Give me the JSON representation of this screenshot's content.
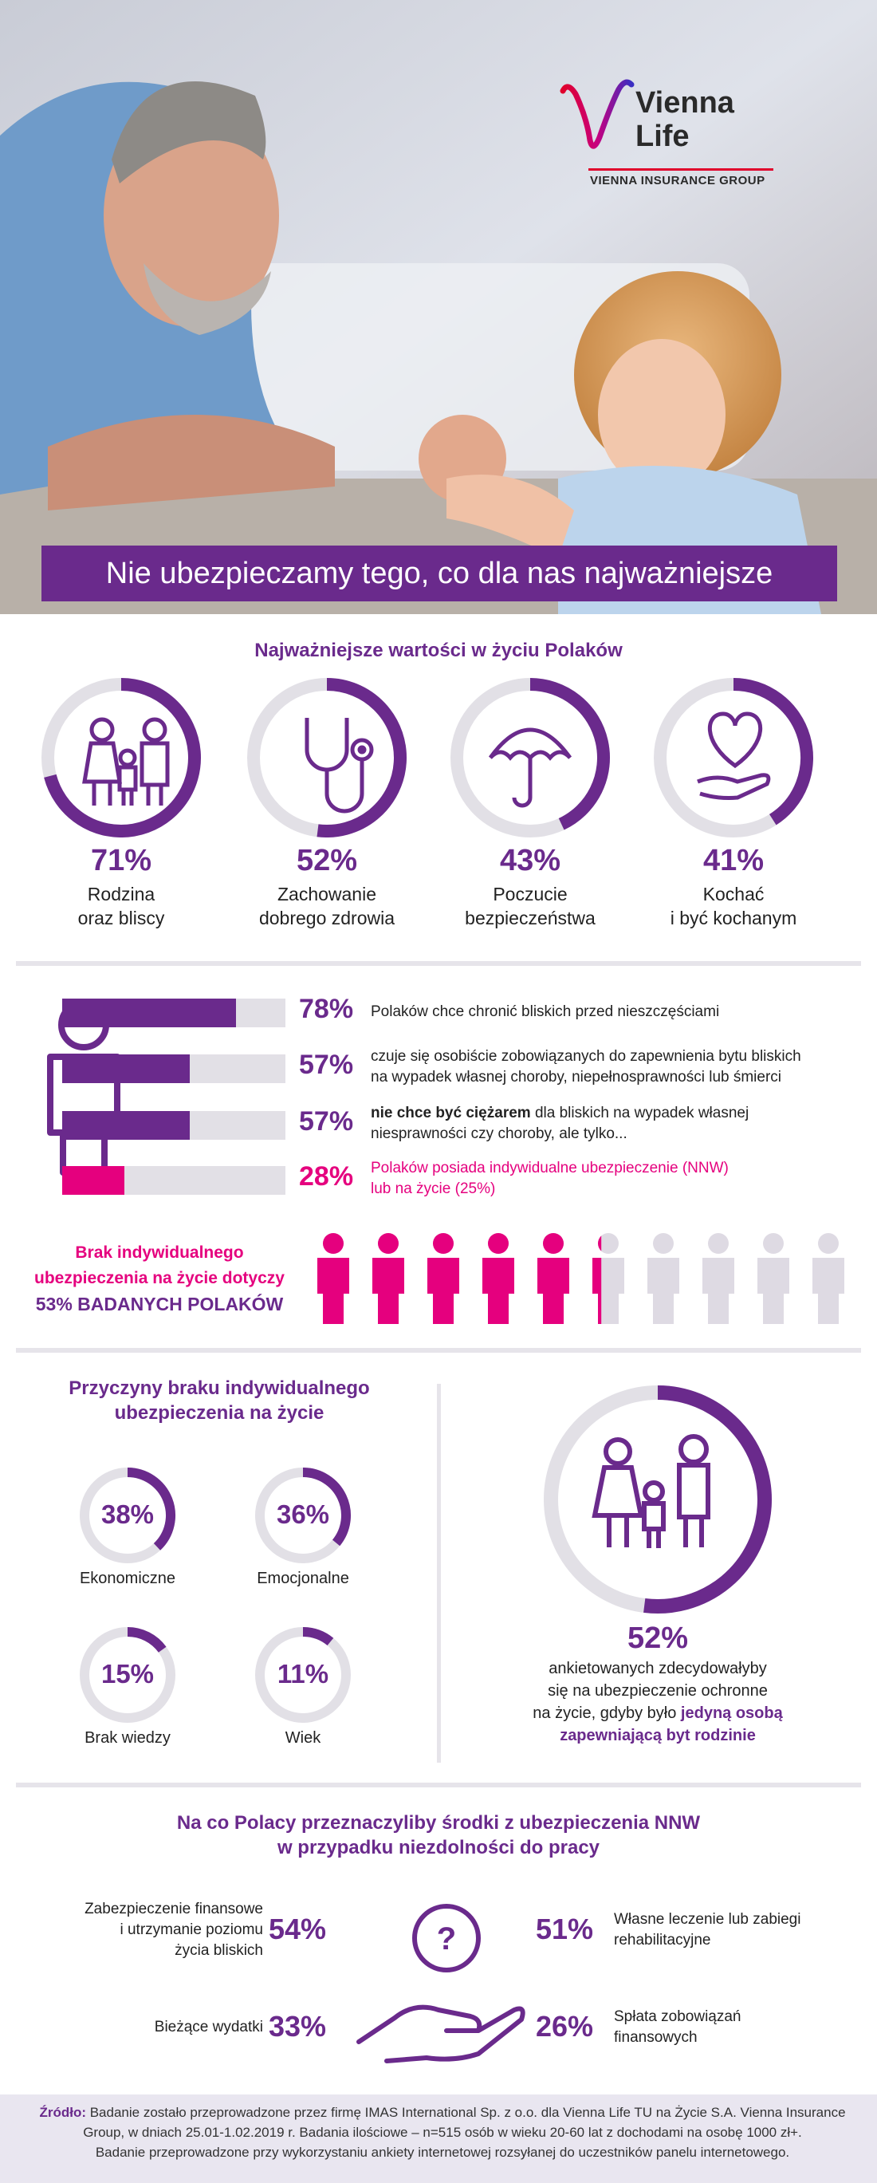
{
  "brand": {
    "name_line1": "Vienna",
    "name_line2": "Life",
    "group": "VIENNA INSURANCE GROUP",
    "accent_red": "#e0002b",
    "purple": "#6a2a8c",
    "magenta": "#e5007e"
  },
  "headline": "Nie ubezpieczamy tego, co dla nas najważniejsze",
  "values_section": {
    "title": "Najważniejsze wartości w życiu Polaków",
    "items": [
      {
        "value": 71,
        "pct": "71%",
        "line1": "Rodzina",
        "line2": "oraz bliscy",
        "icon": "family-icon"
      },
      {
        "value": 52,
        "pct": "52%",
        "line1": "Zachowanie",
        "line2": "dobrego zdrowia",
        "icon": "stethoscope-icon"
      },
      {
        "value": 43,
        "pct": "43%",
        "line1": "Poczucie",
        "line2": "bezpieczeństwa",
        "icon": "umbrella-icon"
      },
      {
        "value": 41,
        "pct": "41%",
        "line1": "Kochać",
        "line2": "i być kochanym",
        "icon": "heart-hand-icon"
      }
    ]
  },
  "protection_section": {
    "rows": [
      {
        "value": 78,
        "pct": "78%",
        "text_bold": "",
        "text": "Polaków chce chronić bliskich przed nieszczęściami",
        "line2": ""
      },
      {
        "value": 57,
        "pct": "57%",
        "text_bold": "",
        "text": "czuje się osobiście zobowiązanych do zapewnienia bytu bliskich",
        "line2": "na wypadek własnej choroby, niepełnosprawności  lub śmierci"
      },
      {
        "value": 57,
        "pct": "57%",
        "text_bold": "nie chce być ciężarem",
        "text": " dla bliskich na wypadek własnej",
        "line2": "niesprawności czy choroby, ale tylko..."
      },
      {
        "value": 28,
        "pct": "28%",
        "text_bold": "",
        "text": "Polaków posiada indywidualne ubezpieczenie (NNW)",
        "line2": "lub na życie (25%)"
      }
    ]
  },
  "lack_section": {
    "line1": "Brak indywidualnego",
    "line2": "ubezpieczenia na życie dotyczy",
    "line3": "53% BADANYCH POLAKÓW",
    "value": 53
  },
  "reasons_section": {
    "title_line1": "Przyczyny braku indywidualnego",
    "title_line2": "ubezpieczenia na życie",
    "items": [
      {
        "value": 38,
        "pct": "38%",
        "label": "Ekonomiczne"
      },
      {
        "value": 36,
        "pct": "36%",
        "label": "Emocjonalne"
      },
      {
        "value": 15,
        "pct": "15%",
        "label": "Brak wiedzy"
      },
      {
        "value": 11,
        "pct": "11%",
        "label": "Wiek"
      }
    ]
  },
  "decision_section": {
    "value": 52,
    "pct": "52%",
    "line1": "ankietowanych zdecydowałyby",
    "line2": "się na ubezpieczenie ochronne",
    "line3_plain": "na życie, gdyby było ",
    "line3_accent": "jedyną osobą",
    "line4_accent": "zapewniającą byt rodzinie"
  },
  "nnw_section": {
    "title_line1": "Na co Polacy przeznaczyliby środki z ubezpieczenia NNW",
    "title_line2": "w przypadku niezdolności do pracy",
    "left": [
      {
        "pct": "54%",
        "lines": [
          "Zabezpieczenie finansowe",
          "i utrzymanie poziomu",
          "życia bliskich"
        ]
      },
      {
        "pct": "33%",
        "lines": [
          "Bieżące wydatki"
        ]
      }
    ],
    "right": [
      {
        "pct": "51%",
        "lines": [
          "Własne leczenie lub zabiegi",
          "rehabilitacyjne"
        ]
      },
      {
        "pct": "26%",
        "lines": [
          "Spłata zobowiązań",
          "finansowych"
        ]
      }
    ],
    "center_symbol": "?"
  },
  "source": {
    "label": "Źródło:",
    "line1": " Badanie zostało przeprowadzone przez firmę IMAS International Sp. z o.o. dla  Vienna Life TU na Życie S.A. Vienna Insurance",
    "line2": "Group, w dniach 25.01-1.02.2019 r. Badania ilościowe – n=515 osób w wieku 20-60 lat z dochodami na osobę 1000 zł+.",
    "line3": "Badanie przeprowadzone przy wykorzystaniu ankiety internetowej rozsyłanej do uczestników panelu internetowego."
  },
  "chart_data": [
    {
      "type": "pie",
      "title": "Najważniejsze wartości w życiu Polaków",
      "categories": [
        "Rodzina oraz bliscy",
        "Zachowanie dobrego zdrowia",
        "Poczucie bezpieczeństwa",
        "Kochać i być kochanym"
      ],
      "values": [
        71,
        52,
        43,
        41
      ]
    },
    {
      "type": "bar",
      "categories": [
        "Polaków chce chronić bliskich przed nieszczęściami",
        "czuje się osobiście zobowiązanych do zapewnienia bytu bliskich",
        "nie chce być ciężarem",
        "Polaków posiada indywidualne ubezpieczenie (NNW) lub na życie (25%)"
      ],
      "values": [
        78,
        57,
        57,
        28
      ],
      "ylim": [
        0,
        100
      ]
    },
    {
      "type": "pie",
      "title": "Przyczyny braku indywidualnego ubezpieczenia na życie",
      "categories": [
        "Ekonomiczne",
        "Emocjonalne",
        "Brak wiedzy",
        "Wiek"
      ],
      "values": [
        38,
        36,
        15,
        11
      ]
    },
    {
      "type": "pie",
      "categories": [
        "ankietowanych zdecydowałyby się na ubezpieczenie ochronne"
      ],
      "values": [
        52
      ]
    },
    {
      "type": "table",
      "title": "Na co Polacy przeznaczyliby środki z ubezpieczenia NNW w przypadku niezdolności do pracy",
      "categories": [
        "Zabezpieczenie finansowe i utrzymanie poziomu życia bliskich",
        "Własne leczenie lub zabiegi rehabilitacyjne",
        "Bieżące wydatki",
        "Spłata zobowiązań finansowych"
      ],
      "values": [
        54,
        51,
        33,
        26
      ]
    }
  ]
}
